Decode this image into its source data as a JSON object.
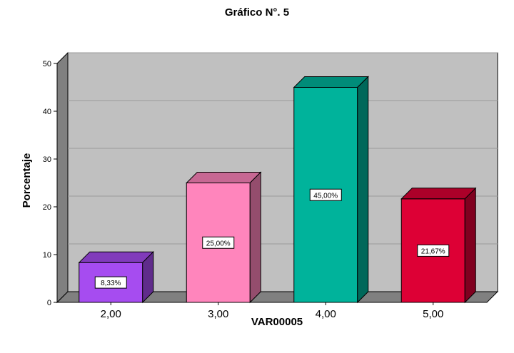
{
  "chart_data": {
    "type": "bar",
    "title": "Gráfico N°. 5",
    "xlabel": "VAR00005",
    "ylabel": "Porcentaje",
    "categories": [
      "2,00",
      "3,00",
      "4,00",
      "5,00"
    ],
    "values": [
      8.33,
      25.0,
      45.0,
      21.67
    ],
    "data_labels": [
      "8,33%",
      "25,00%",
      "45,00%",
      "21,67%"
    ],
    "ylim": [
      0,
      50
    ],
    "yticks": [
      "0",
      "10",
      "20",
      "30",
      "40",
      "50"
    ],
    "grid": true,
    "style": "3d",
    "colors": [
      "#A64CF0",
      "#FF85BC",
      "#00B39B",
      "#DD0035"
    ],
    "background_color": "#C0C0C0"
  }
}
